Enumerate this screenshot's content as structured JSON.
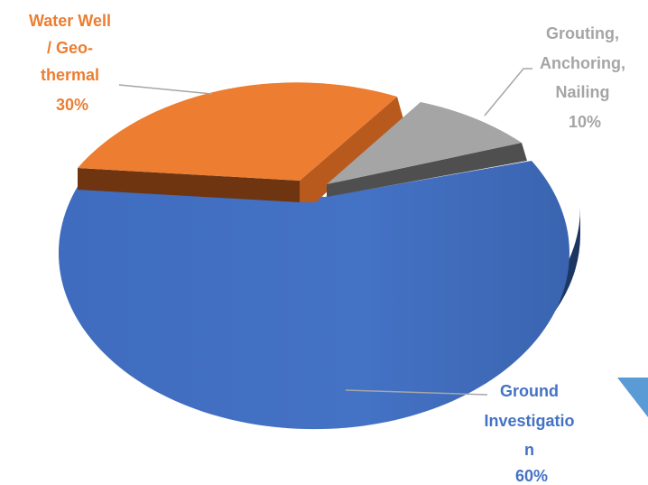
{
  "chart_data": {
    "type": "pie",
    "title": "",
    "slices": [
      {
        "label_lines": [
          "Ground",
          "Investigatio",
          "n"
        ],
        "percent_label": "60%",
        "value": 60,
        "color": "#4472c4"
      },
      {
        "label_lines": [
          "Water Well",
          "/ Geo-",
          "thermal"
        ],
        "percent_label": "30%",
        "value": 30,
        "color": "#ed7d31"
      },
      {
        "label_lines": [
          "Grouting,",
          "Anchoring,",
          "Nailing"
        ],
        "percent_label": "10%",
        "value": 10,
        "color": "#a5a5a5"
      }
    ],
    "legend": "none",
    "style": "3d-exploded"
  },
  "colors": {
    "decor_triangle": "#5b9bd5"
  }
}
